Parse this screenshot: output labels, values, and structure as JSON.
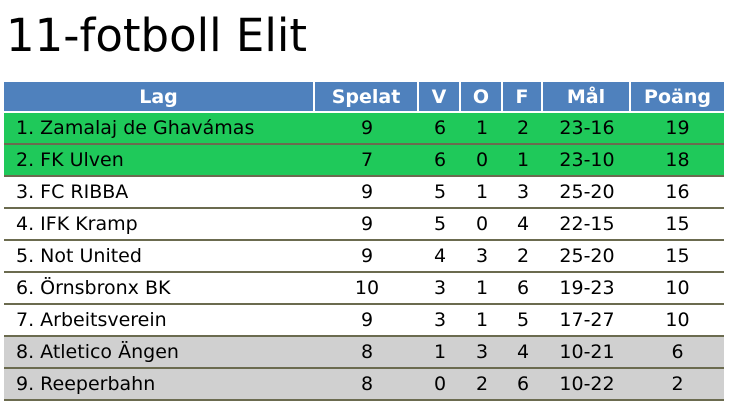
{
  "title": "11-fotboll Elit",
  "colors": {
    "header": "#4f81bd",
    "promotion": "#1fc95a",
    "relegation": "#d0d0d0"
  },
  "table": {
    "headers": [
      "Lag",
      "Spelat",
      "V",
      "O",
      "F",
      "Mål",
      "Poäng"
    ],
    "rows": [
      {
        "team": "1. Zamalaj de Ghavámas",
        "played": "9",
        "w": "6",
        "d": "1",
        "l": "2",
        "goals": "23-16",
        "points": "19",
        "zone": "promo"
      },
      {
        "team": "2. FK Ulven",
        "played": "7",
        "w": "6",
        "d": "0",
        "l": "1",
        "goals": "23-10",
        "points": "18",
        "zone": "promo"
      },
      {
        "team": "3. FC RIBBA",
        "played": "9",
        "w": "5",
        "d": "1",
        "l": "3",
        "goals": "25-20",
        "points": "16",
        "zone": "normal"
      },
      {
        "team": "4. IFK Kramp",
        "played": "9",
        "w": "5",
        "d": "0",
        "l": "4",
        "goals": "22-15",
        "points": "15",
        "zone": "normal"
      },
      {
        "team": "5. Not United",
        "played": "9",
        "w": "4",
        "d": "3",
        "l": "2",
        "goals": "25-20",
        "points": "15",
        "zone": "normal"
      },
      {
        "team": "6. Örnsbronx BK",
        "played": "10",
        "w": "3",
        "d": "1",
        "l": "6",
        "goals": "19-23",
        "points": "10",
        "zone": "normal"
      },
      {
        "team": "7. Arbeitsverein",
        "played": "9",
        "w": "3",
        "d": "1",
        "l": "5",
        "goals": "17-27",
        "points": "10",
        "zone": "normal"
      },
      {
        "team": "8. Atletico Ängen",
        "played": "8",
        "w": "1",
        "d": "3",
        "l": "4",
        "goals": "10-21",
        "points": "6",
        "zone": "relegate"
      },
      {
        "team": "9. Reeperbahn",
        "played": "8",
        "w": "0",
        "d": "2",
        "l": "6",
        "goals": "10-22",
        "points": "2",
        "zone": "relegate"
      }
    ]
  }
}
